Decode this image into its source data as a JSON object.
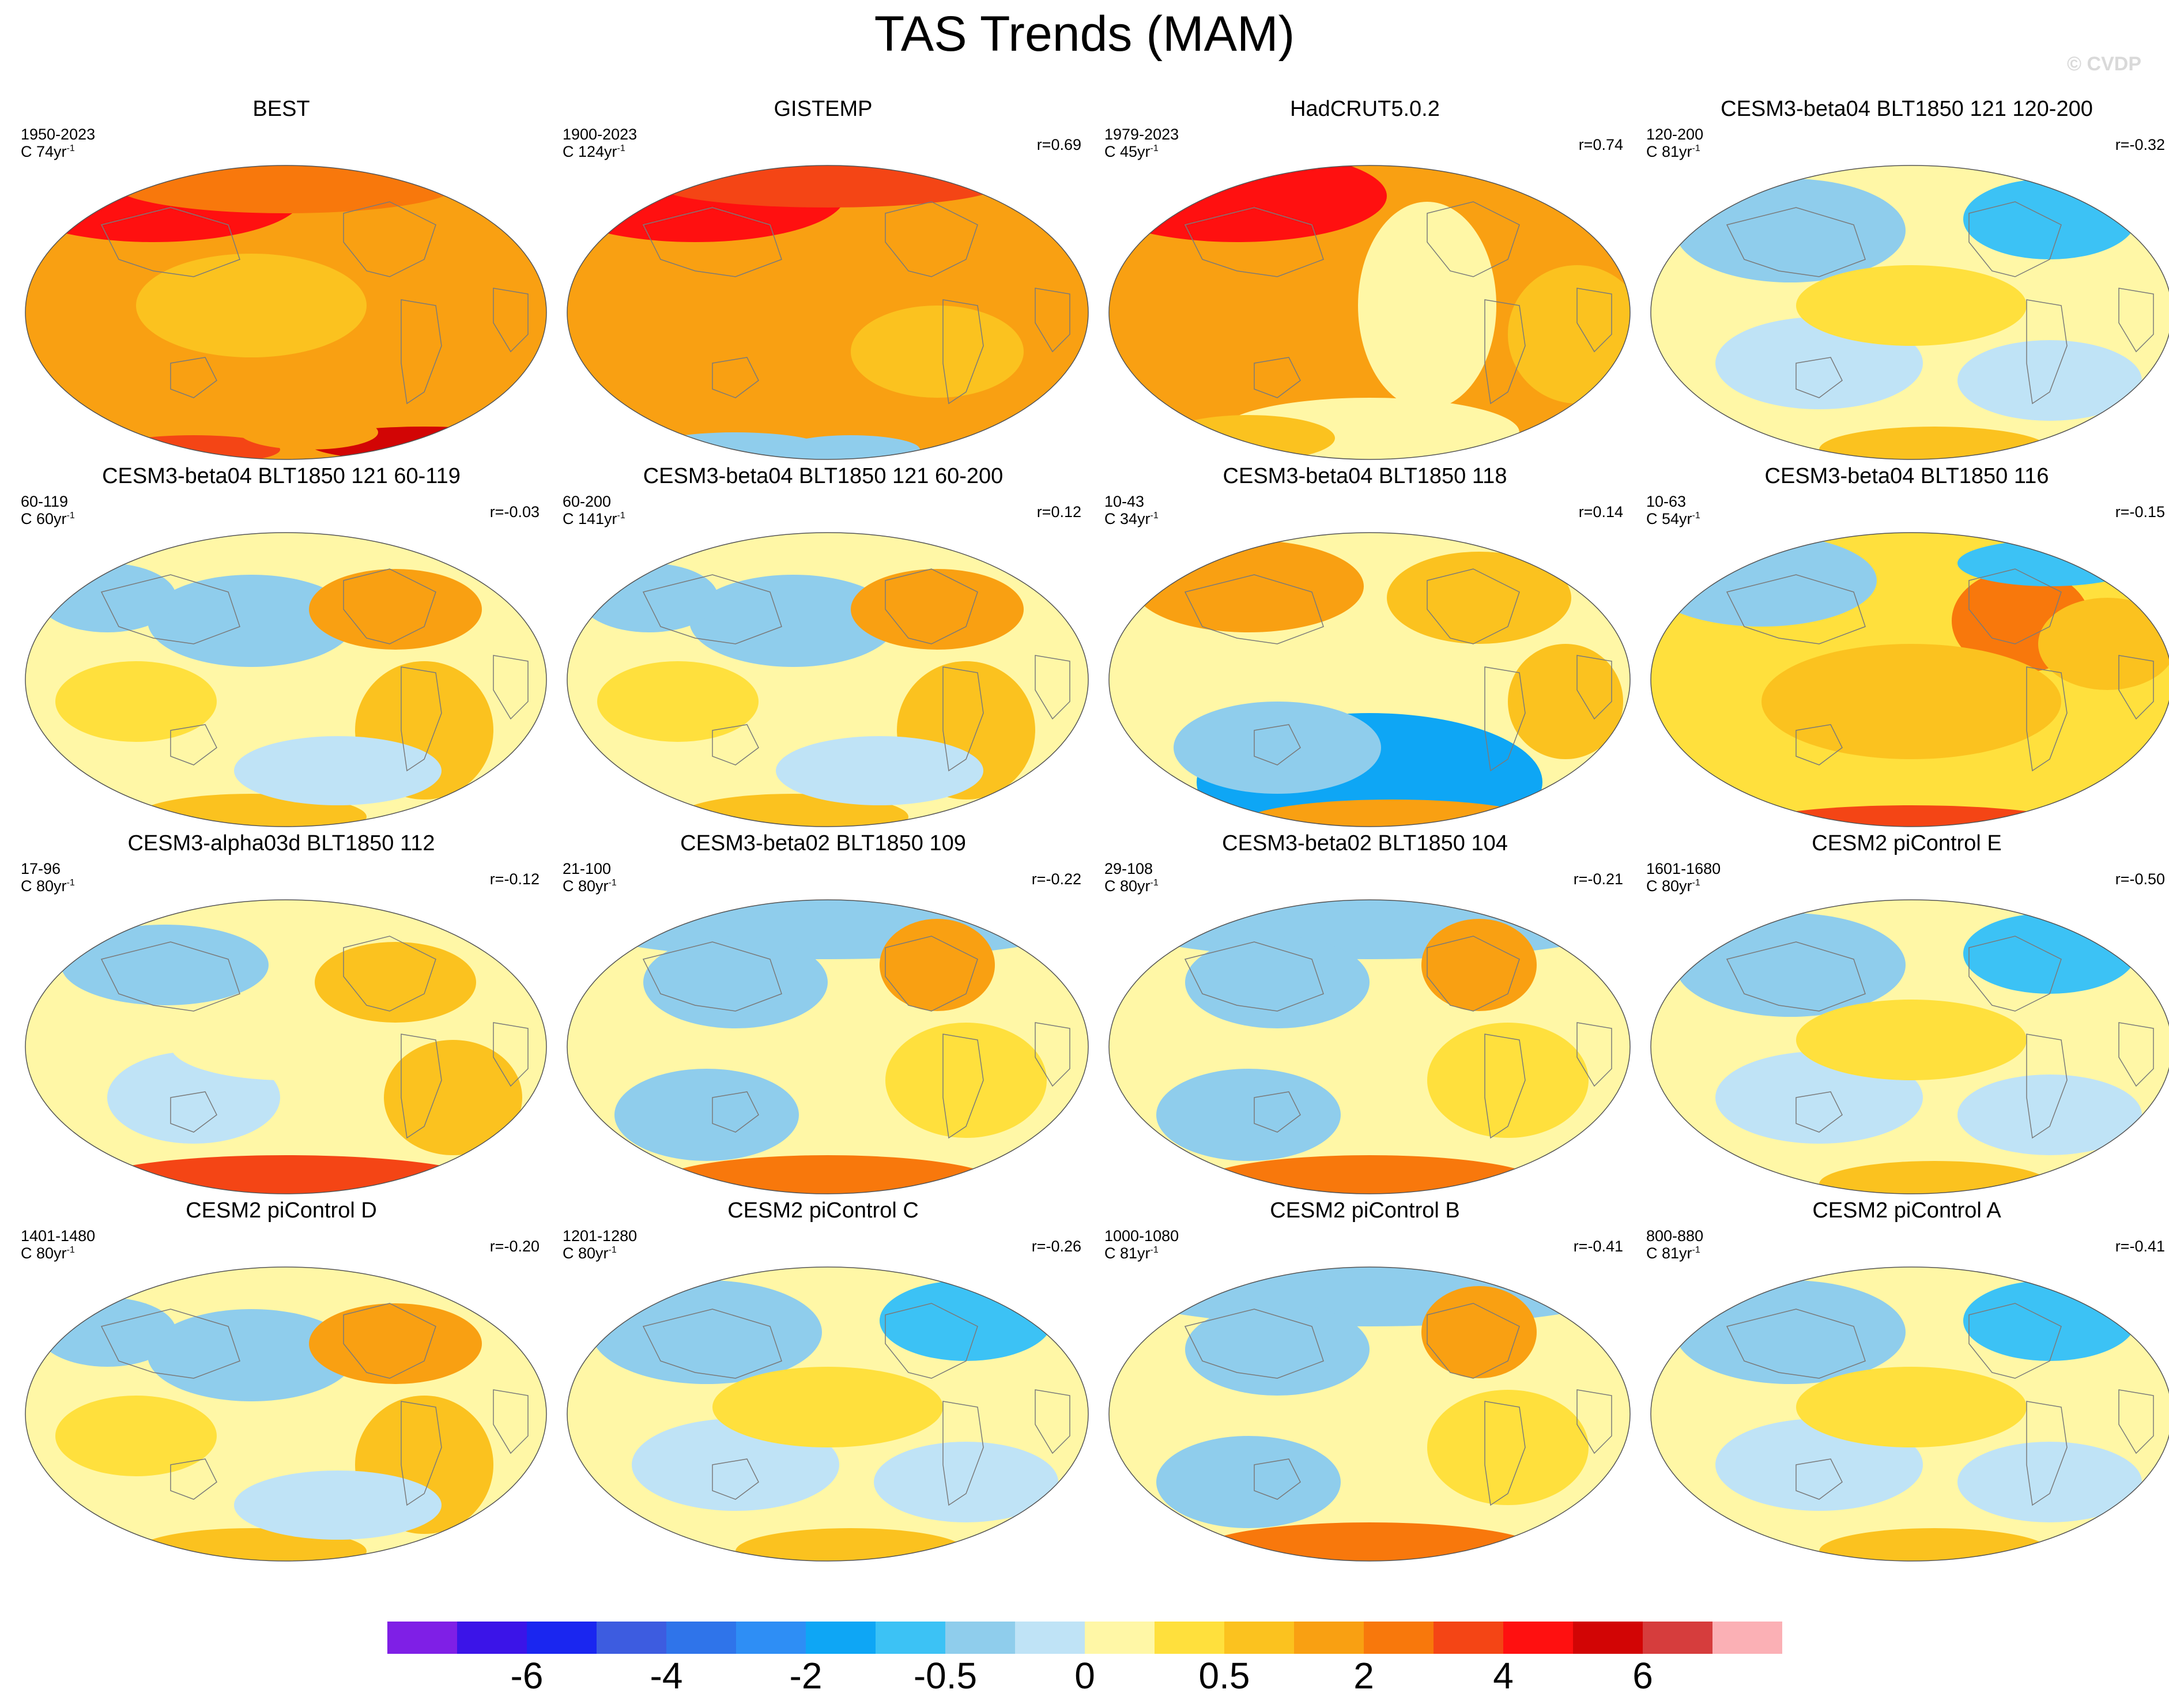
{
  "title": "TAS Trends (MAM)",
  "watermark": "© CVDP",
  "panels": [
    {
      "name": "BEST",
      "period": "1950-2023",
      "clen": "C 74yr",
      "corr": "",
      "scheme": "obs1"
    },
    {
      "name": "GISTEMP",
      "period": "1900-2023",
      "clen": "C 124yr",
      "corr": "r=0.69",
      "scheme": "obs2"
    },
    {
      "name": "HadCRUT5.0.2",
      "period": "1979-2023",
      "clen": "C 45yr",
      "corr": "r=0.74",
      "scheme": "obs3"
    },
    {
      "name": "CESM3-beta04 BLT1850 121 120-200",
      "period": "120-200",
      "clen": "C 81yr",
      "corr": "r=-0.32",
      "scheme": "cool"
    },
    {
      "name": "CESM3-beta04 BLT1850 121 60-119",
      "period": "60-119",
      "clen": "C 60yr",
      "corr": "r=-0.03",
      "scheme": "mixed"
    },
    {
      "name": "CESM3-beta04 BLT1850 121 60-200",
      "period": "60-200",
      "clen": "C 141yr",
      "corr": "r=0.12",
      "scheme": "mixed"
    },
    {
      "name": "CESM3-beta04 BLT1850 118",
      "period": "10-43",
      "clen": "C 34yr",
      "corr": "r=0.14",
      "scheme": "coolsouth"
    },
    {
      "name": "CESM3-beta04 BLT1850 116",
      "period": "10-63",
      "clen": "C 54yr",
      "corr": "r=-0.15",
      "scheme": "warm"
    },
    {
      "name": "CESM3-alpha03d BLT1850 112",
      "period": "17-96",
      "clen": "C 80yr",
      "corr": "r=-0.12",
      "scheme": "warmsouth"
    },
    {
      "name": "CESM3-beta02 BLT1850 109",
      "period": "21-100",
      "clen": "C 80yr",
      "corr": "r=-0.22",
      "scheme": "coolnorth"
    },
    {
      "name": "CESM3-beta02 BLT1850 104",
      "period": "29-108",
      "clen": "C 80yr",
      "corr": "r=-0.21",
      "scheme": "coolnorth"
    },
    {
      "name": "CESM2 piControl E",
      "period": "1601-1680",
      "clen": "C 80yr",
      "corr": "r=-0.50",
      "scheme": "cool"
    },
    {
      "name": "CESM2 piControl D",
      "period": "1401-1480",
      "clen": "C 80yr",
      "corr": "r=-0.20",
      "scheme": "mixed"
    },
    {
      "name": "CESM2 piControl C",
      "period": "1201-1280",
      "clen": "C 80yr",
      "corr": "r=-0.26",
      "scheme": "cool"
    },
    {
      "name": "CESM2 piControl B",
      "period": "1000-1080",
      "clen": "C 81yr",
      "corr": "r=-0.41",
      "scheme": "coolnorth"
    },
    {
      "name": "CESM2 piControl A",
      "period": "800-880",
      "clen": "C 81yr",
      "corr": "r=-0.41",
      "scheme": "cool"
    }
  ],
  "chart_data": {
    "type": "heatmap",
    "title": "TAS Trends (MAM)",
    "colorbar": {
      "colors": [
        "#7f1fe6",
        "#3b14e8",
        "#1a26f0",
        "#3d5ce0",
        "#2f74ea",
        "#2e8ef5",
        "#0ea6f5",
        "#3cc2f5",
        "#8fcdec",
        "#bfe3f6",
        "#fff7a6",
        "#ffe03d",
        "#fbc21f",
        "#f9a012",
        "#f8780c",
        "#f44515",
        "#ff1010",
        "#d20505",
        "#d63d3d",
        "#fbb0b5"
      ],
      "labels": [
        {
          "text": "-6",
          "boundary": 2
        },
        {
          "text": "-4",
          "boundary": 4
        },
        {
          "text": "-2",
          "boundary": 6
        },
        {
          "text": "-0.5",
          "boundary": 8
        },
        {
          "text": "0",
          "boundary": 10
        },
        {
          "text": "0.5",
          "boundary": 12
        },
        {
          "text": "2",
          "boundary": 14
        },
        {
          "text": "4",
          "boundary": 16
        },
        {
          "text": "6",
          "boundary": 18
        }
      ]
    }
  }
}
